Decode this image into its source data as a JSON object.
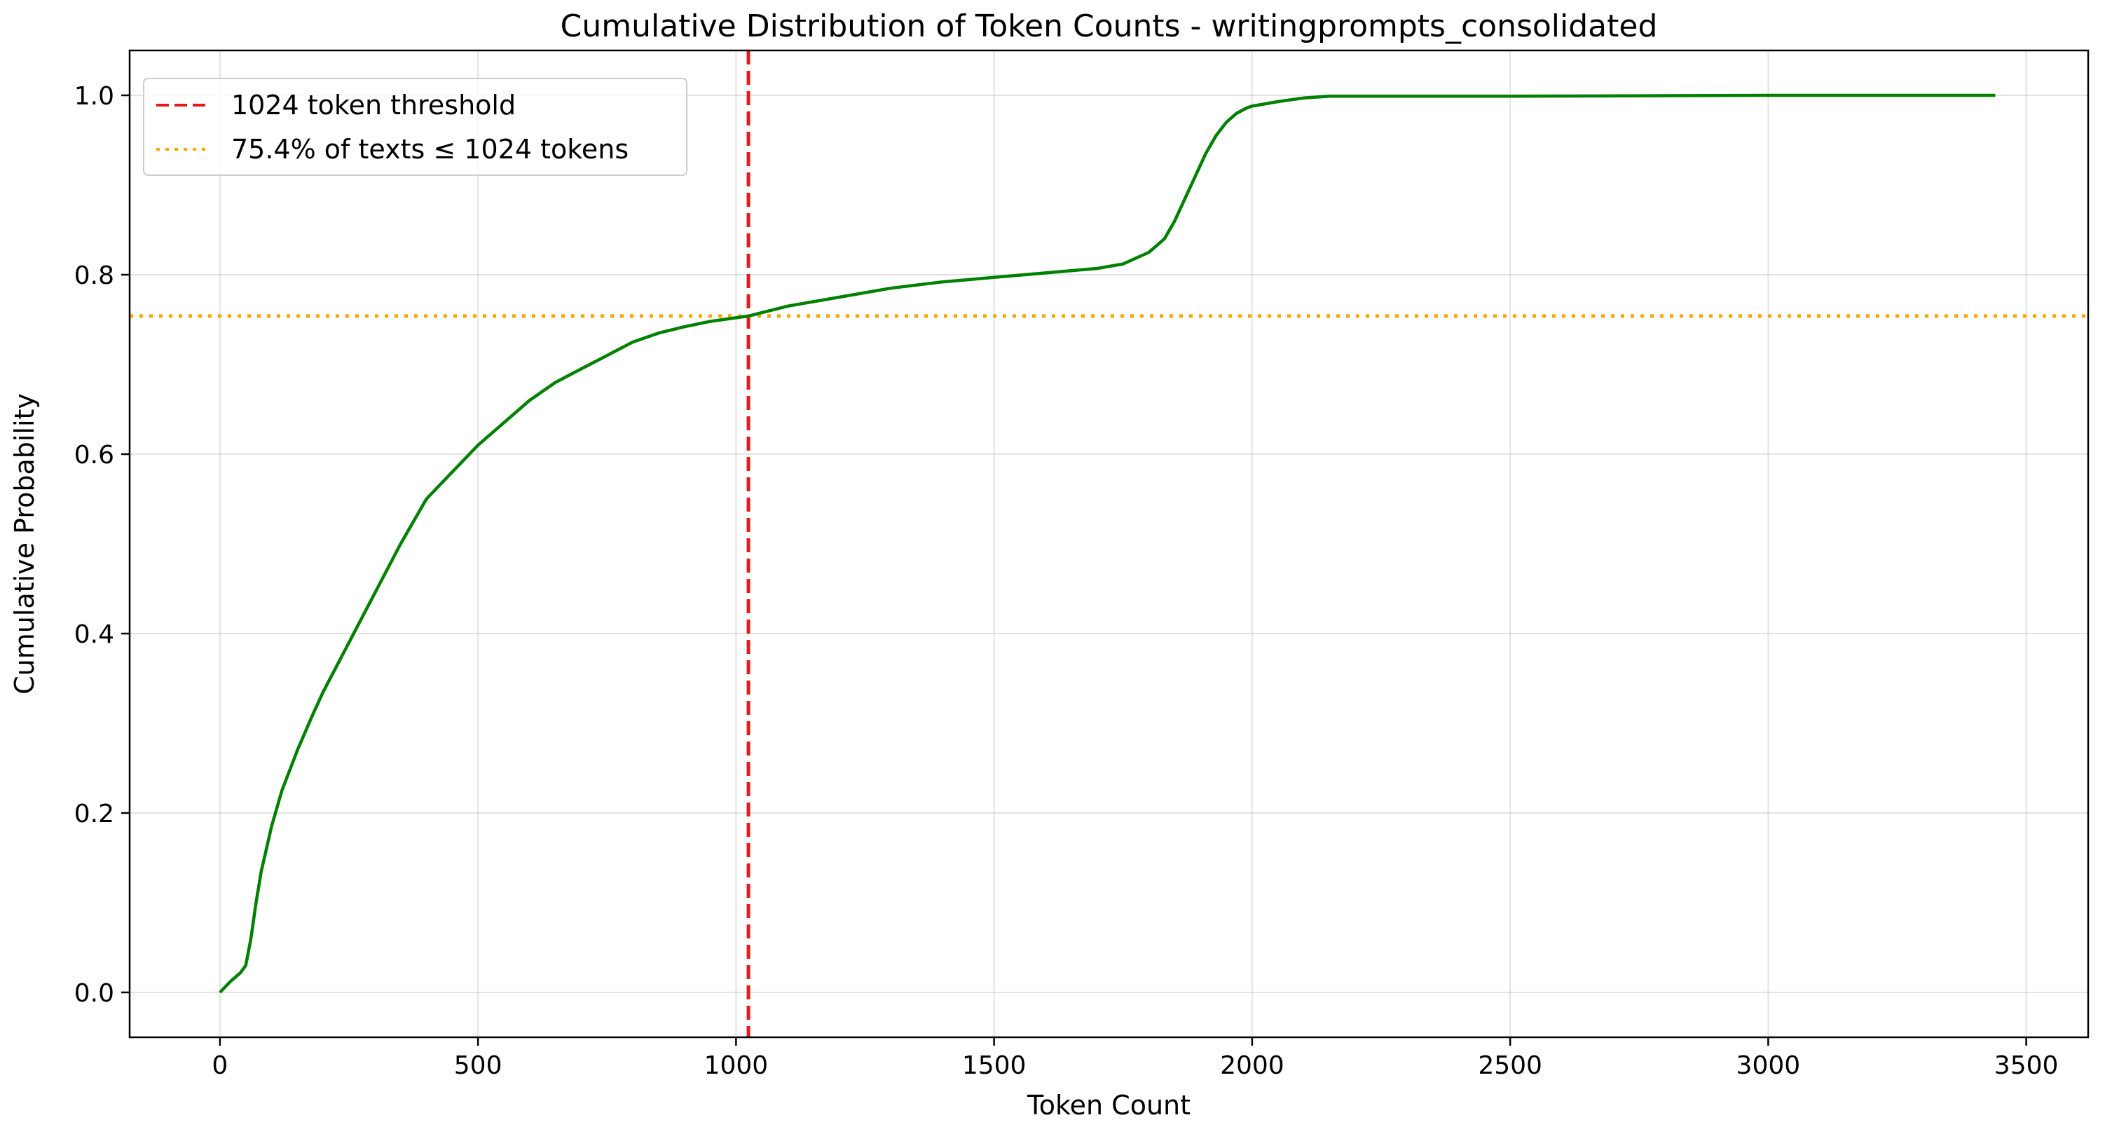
{
  "chart_data": {
    "type": "line",
    "title": "Cumulative Distribution of Token Counts - writingprompts_consolidated",
    "xlabel": "Token Count",
    "ylabel": "Cumulative Probability",
    "xlim": [
      -175,
      3620
    ],
    "ylim": [
      -0.05,
      1.05
    ],
    "xticks": [
      0,
      500,
      1000,
      1500,
      2000,
      2500,
      3000,
      3500
    ],
    "yticks": [
      0.0,
      0.2,
      0.4,
      0.6,
      0.8,
      1.0
    ],
    "ytick_labels": [
      "0.0",
      "0.2",
      "0.4",
      "0.6",
      "0.8",
      "1.0"
    ],
    "grid": true,
    "legend": {
      "placement": "top-left",
      "entries": [
        {
          "label": "1024 token threshold",
          "color": "#e41a1c",
          "style": "dashed"
        },
        {
          "label": "75.4% of texts ≤ 1024 tokens",
          "color": "#ffa500",
          "style": "dotted"
        }
      ]
    },
    "reference_lines": {
      "vertical": {
        "x": 1024,
        "color": "#e41a1c",
        "style": "dashed"
      },
      "horizontal": {
        "y": 0.754,
        "color": "#ffa500",
        "style": "dotted"
      }
    },
    "series": [
      {
        "color": "#008000",
        "x": [
          0,
          20,
          40,
          50,
          60,
          70,
          80,
          90,
          100,
          120,
          150,
          180,
          200,
          250,
          300,
          350,
          400,
          450,
          500,
          550,
          600,
          650,
          700,
          750,
          800,
          850,
          900,
          950,
          1000,
          1024,
          1100,
          1200,
          1300,
          1400,
          1500,
          1600,
          1700,
          1750,
          1800,
          1830,
          1850,
          1870,
          1890,
          1910,
          1930,
          1950,
          1970,
          1990,
          2000,
          2050,
          2100,
          2150,
          2500,
          3000,
          3440
        ],
        "y": [
          0.0,
          0.012,
          0.022,
          0.03,
          0.06,
          0.1,
          0.135,
          0.16,
          0.185,
          0.225,
          0.27,
          0.31,
          0.335,
          0.39,
          0.445,
          0.5,
          0.55,
          0.58,
          0.61,
          0.635,
          0.66,
          0.68,
          0.695,
          0.71,
          0.725,
          0.735,
          0.742,
          0.748,
          0.752,
          0.754,
          0.765,
          0.775,
          0.785,
          0.792,
          0.797,
          0.802,
          0.807,
          0.812,
          0.825,
          0.84,
          0.86,
          0.885,
          0.91,
          0.935,
          0.955,
          0.97,
          0.98,
          0.986,
          0.988,
          0.993,
          0.997,
          0.999,
          0.999,
          1.0,
          1.0
        ]
      }
    ]
  }
}
